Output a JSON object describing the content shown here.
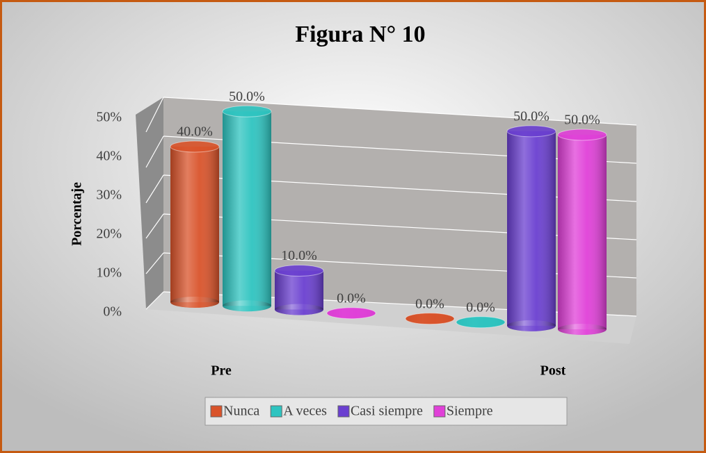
{
  "chart_data": {
    "type": "bar3d",
    "title": "Figura N° 10",
    "ylabel": "Porcentaje",
    "categories": [
      "Pre",
      "Post"
    ],
    "series": [
      {
        "name": "Nunca",
        "color": "#d9532a",
        "values": [
          40,
          0
        ],
        "value_labels": [
          "40.0%",
          "0.0%"
        ]
      },
      {
        "name": "A veces",
        "color": "#2ec4c0",
        "values": [
          50,
          0
        ],
        "value_labels": [
          "50.0%",
          "0.0%"
        ]
      },
      {
        "name": "Casi siempre",
        "color": "#6a3fd0",
        "values": [
          10,
          50
        ],
        "value_labels": [
          "10.0%",
          "50.0%"
        ]
      },
      {
        "name": "Siempre",
        "color": "#e040d8",
        "values": [
          0,
          50
        ],
        "value_labels": [
          "0.0%",
          "50.0%"
        ]
      }
    ],
    "ylim": [
      0,
      50
    ],
    "yticks": [
      {
        "value": 0,
        "label": "0%"
      },
      {
        "value": 10,
        "label": "10%"
      },
      {
        "value": 20,
        "label": "20%"
      },
      {
        "value": 30,
        "label": "30%"
      },
      {
        "value": 40,
        "label": "40%"
      },
      {
        "value": 50,
        "label": "50%"
      }
    ],
    "grid": true,
    "legend": "bottom"
  }
}
